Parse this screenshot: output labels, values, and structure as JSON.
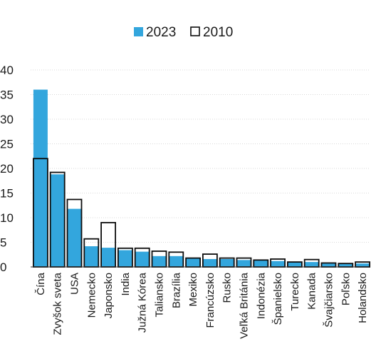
{
  "chart_data": {
    "type": "bar",
    "title": "",
    "xlabel": "",
    "ylabel": "",
    "ylim": [
      0,
      40
    ],
    "yticks": [
      0,
      5,
      10,
      15,
      20,
      25,
      30,
      35,
      40
    ],
    "grid": true,
    "legend": "top-center",
    "categories": [
      "Čína",
      "Zvyšok sveta",
      "USA",
      "Nemecko",
      "Japonsko",
      "India",
      "Južná Kórea",
      "Taliansko",
      "Brazília",
      "Mexiko",
      "Francúzsko",
      "Rusko",
      "Veľká Británia",
      "Indonézia",
      "Španielsko",
      "Turecko",
      "Kanada",
      "Švajčiarsko",
      "Poľsko",
      "Holandsko"
    ],
    "series": [
      {
        "name": "2023",
        "style": "filled",
        "color": "#33a6dd",
        "values": [
          36.0,
          18.8,
          11.8,
          4.2,
          3.9,
          3.4,
          3.1,
          2.2,
          2.2,
          1.8,
          1.6,
          1.6,
          1.4,
          1.3,
          1.2,
          1.0,
          1.0,
          0.7,
          0.7,
          0.7
        ]
      },
      {
        "name": "2010",
        "style": "outline",
        "color": "#0d0d0d",
        "values": [
          22.0,
          19.2,
          13.7,
          5.7,
          9.0,
          3.8,
          3.8,
          3.2,
          3.0,
          1.8,
          2.6,
          1.8,
          1.8,
          1.4,
          1.6,
          1.0,
          1.5,
          0.8,
          0.7,
          1.0
        ]
      }
    ]
  }
}
